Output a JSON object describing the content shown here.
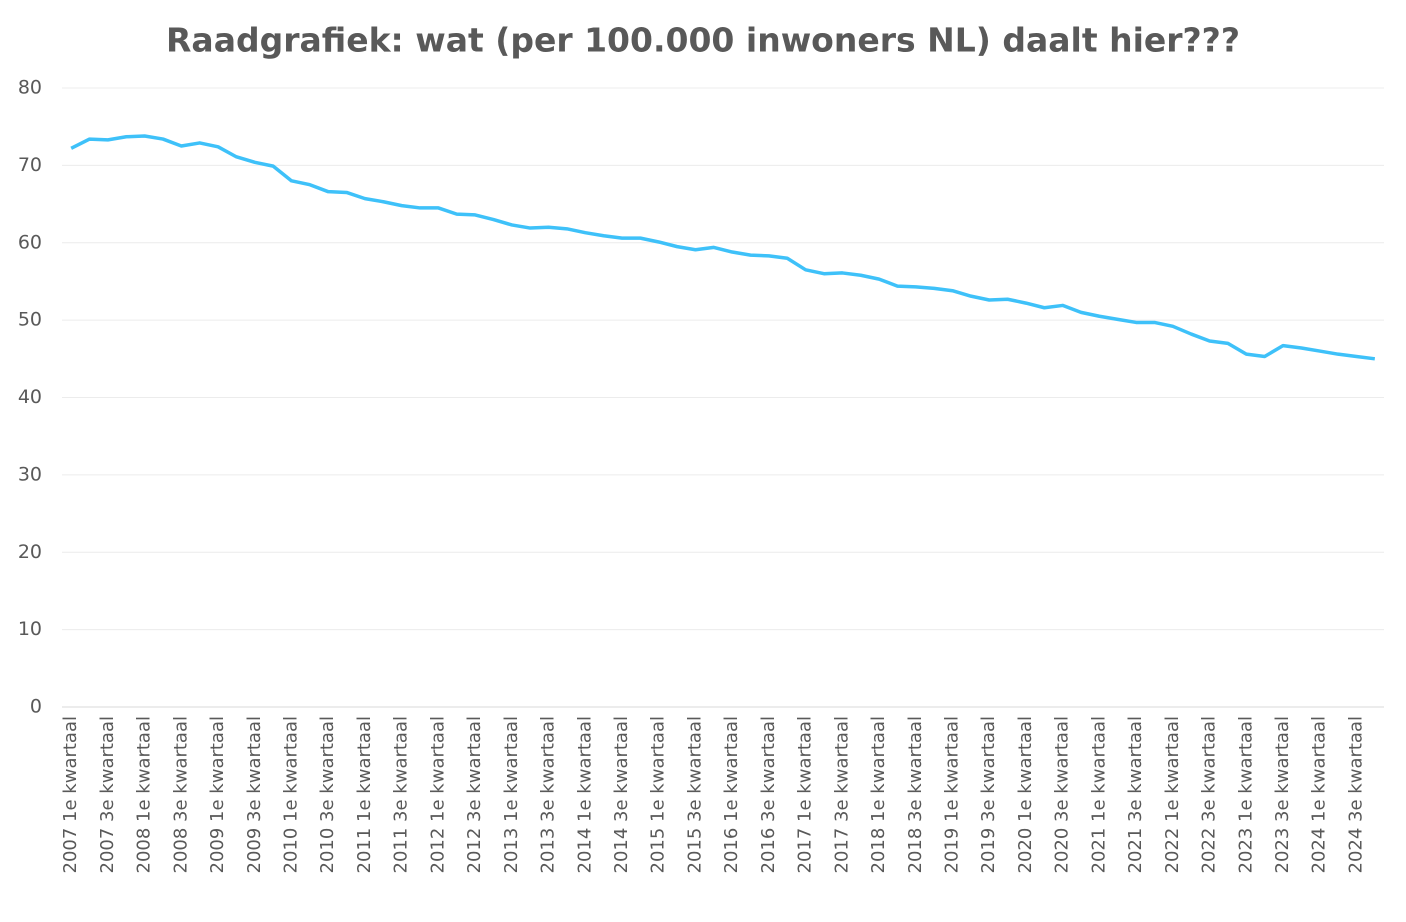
{
  "chart_data": {
    "type": "line",
    "title": "Raadgrafiek: wat (per 100.000 inwoners NL) daalt hier???",
    "categories": [
      "2007 1e kwartaal",
      null,
      "2007 3e kwartaal",
      null,
      "2008 1e kwartaal",
      null,
      "2008 3e kwartaal",
      null,
      "2009 1e kwartaal",
      null,
      "2009 3e kwartaal",
      null,
      "2010 1e kwartaal",
      null,
      "2010 3e kwartaal",
      null,
      "2011 1e kwartaal",
      null,
      "2011 3e kwartaal",
      null,
      "2012 1e kwartaal",
      null,
      "2012 3e kwartaal",
      null,
      "2013 1e kwartaal",
      null,
      "2013 3e kwartaal",
      null,
      "2014 1e kwartaal",
      null,
      "2014 3e kwartaal",
      null,
      "2015 1e kwartaal",
      null,
      "2015 3e kwartaal",
      null,
      "2016 1e kwartaal",
      null,
      "2016 3e kwartaal",
      null,
      "2017 1e kwartaal",
      null,
      "2017 3e kwartaal",
      null,
      "2018 1e kwartaal",
      null,
      "2018 3e kwartaal",
      null,
      "2019 1e kwartaal",
      null,
      "2019 3e kwartaal",
      null,
      "2020 1e kwartaal",
      null,
      "2020 3e kwartaal",
      null,
      "2021 1e kwartaal",
      null,
      "2021 3e kwartaal",
      null,
      "2022 1e kwartaal",
      null,
      "2022 3e kwartaal",
      null,
      "2023 1e kwartaal",
      null,
      "2023 3e kwartaal",
      null,
      "2024 1e kwartaal",
      null,
      "2024 3e kwartaal",
      null
    ],
    "values": [
      72.2,
      73.4,
      73.3,
      73.7,
      73.8,
      73.4,
      72.5,
      72.9,
      72.4,
      71.1,
      70.4,
      69.9,
      68.0,
      67.5,
      66.6,
      66.5,
      65.7,
      65.3,
      64.8,
      64.5,
      64.5,
      63.7,
      63.6,
      63.0,
      62.3,
      61.9,
      62.0,
      61.8,
      61.3,
      60.9,
      60.6,
      60.6,
      60.1,
      59.5,
      59.1,
      59.4,
      58.8,
      58.4,
      58.3,
      58.0,
      56.5,
      56.0,
      56.1,
      55.8,
      55.3,
      54.4,
      54.3,
      54.1,
      53.8,
      53.1,
      52.6,
      52.7,
      52.2,
      51.6,
      51.9,
      51.0,
      50.5,
      50.1,
      49.7,
      49.7,
      49.2,
      48.2,
      47.3,
      47.0,
      45.6,
      45.3,
      46.7,
      46.4,
      46.0,
      45.6,
      45.3,
      45.0
    ],
    "color": "#3ec1f9",
    "ylim": [
      0,
      80
    ],
    "yticks": [
      0,
      10,
      20,
      30,
      40,
      50,
      60,
      70,
      80
    ],
    "grid": true
  }
}
